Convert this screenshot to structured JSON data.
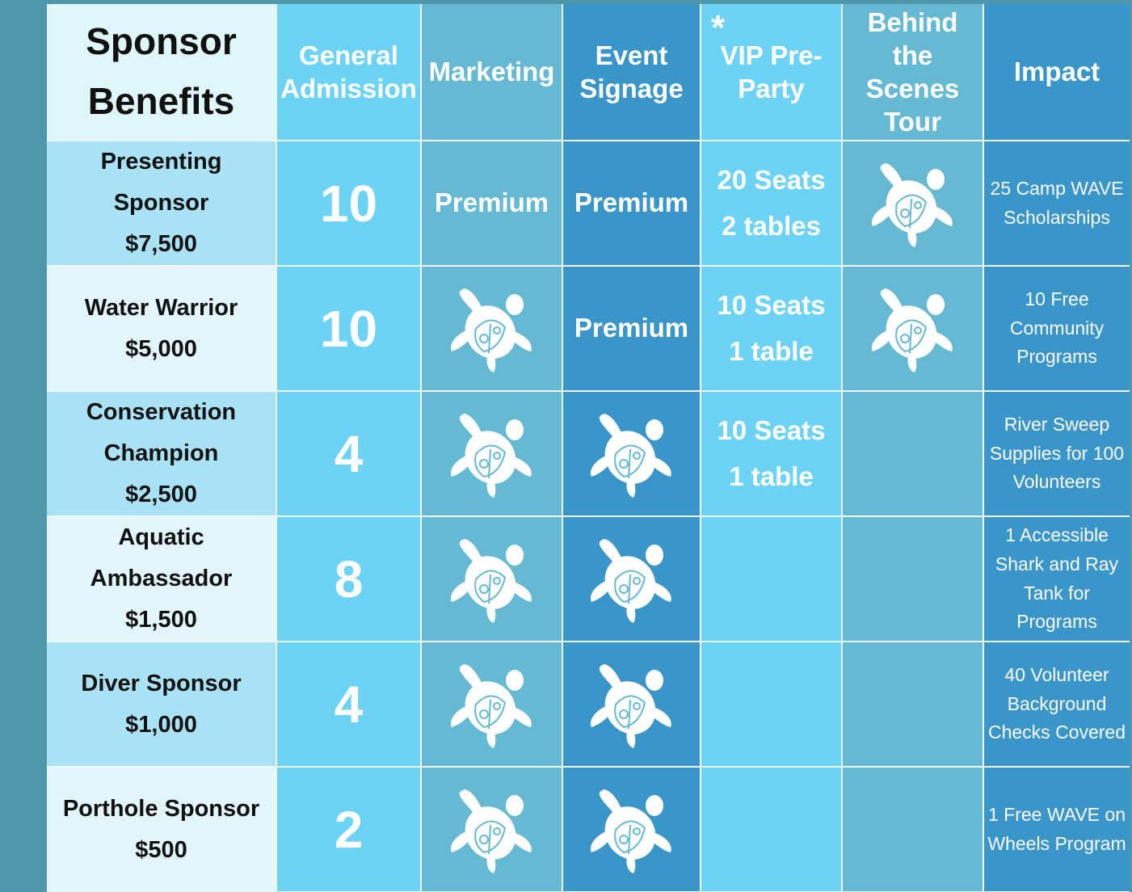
{
  "header": {
    "title": "Sponsor Benefits",
    "columns": [
      "General Admission",
      "Marketing",
      "Event Signage",
      "VIP Pre-Party",
      "Behind the Scenes Tour",
      "Impact"
    ],
    "vip_mark": "*"
  },
  "table": {
    "rows": [
      {
        "tier": "Presenting Sponsor",
        "price": "$7,500",
        "admission": 10,
        "marketing": "Premium",
        "signage": "Premium",
        "vip": [
          "20 Seats",
          "2 tables"
        ],
        "impact": "25 Camp WAVE Scholarships"
      },
      {
        "tier": "Water Warrior",
        "price": "$5,000",
        "admission": 10,
        "signage": "Premium",
        "vip": [
          "10 Seats",
          "1 table"
        ],
        "impact": "10 Free Community Programs"
      },
      {
        "tier": "Conservation Champion",
        "price": "$2,500",
        "admission": 4,
        "vip": [
          "10 Seats",
          "1 table"
        ],
        "impact": "River Sweep Supplies for 100 Volunteers"
      },
      {
        "tier": "Aquatic Ambassador",
        "price": "$1,500",
        "admission": 8,
        "impact": "1 Accessible Shark and Ray Tank for Programs"
      },
      {
        "tier": "Diver Sponsor",
        "price": "$1,000",
        "admission": 4,
        "impact": "40 Volunteer Background Checks Covered"
      },
      {
        "tier": "Porthole Sponsor",
        "price": "$500",
        "admission": 2,
        "impact": "1 Free WAVE on Wheels Program"
      }
    ]
  }
}
